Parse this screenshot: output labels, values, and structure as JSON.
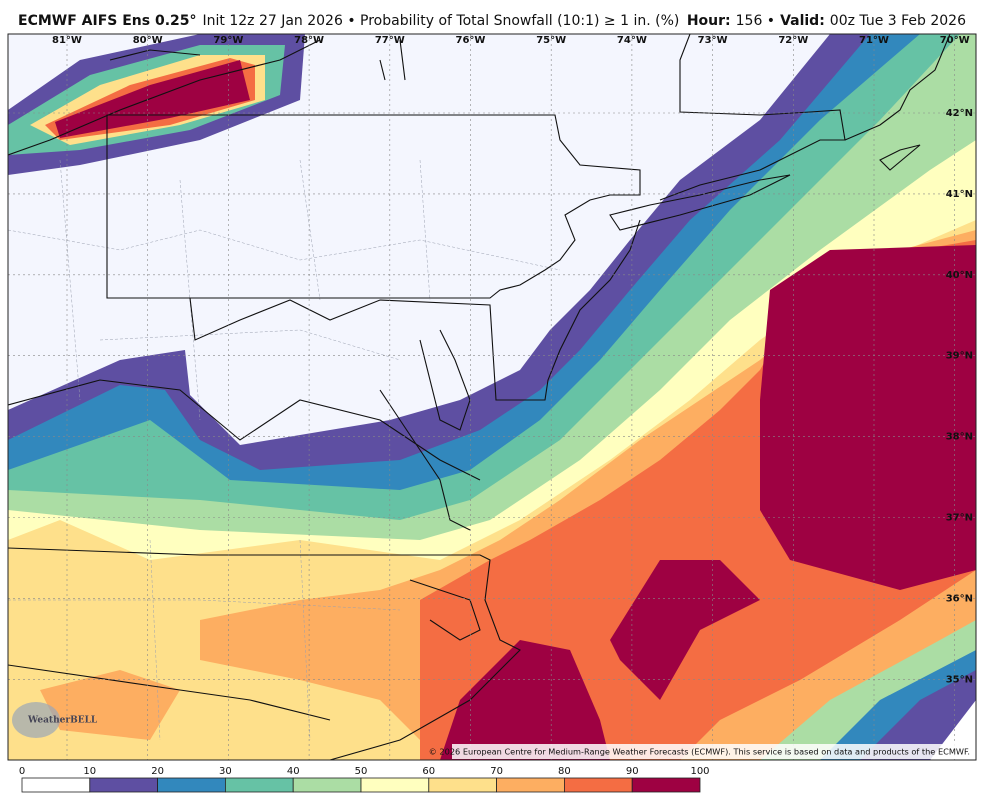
{
  "header": {
    "model": "ECMWF AIFS Ens 0.25°",
    "description": "Init 12z 27 Jan 2026 • Probability of Total Snowfall (10:1) ≥ 1 in. (%)",
    "hour_label": "Hour:",
    "hour": "156 •",
    "valid_label": "Valid:",
    "valid": "00z Tue 3 Feb 2026"
  },
  "map": {
    "longitude_labels": [
      "81°W",
      "80°W",
      "79°W",
      "78°W",
      "77°W",
      "76°W",
      "75°W",
      "74°W",
      "73°W",
      "72°W",
      "71°W",
      "70°W"
    ],
    "latitude_labels": [
      "42°N",
      "41°N",
      "40°N",
      "39°N",
      "38°N",
      "37°N",
      "36°N",
      "35°N"
    ]
  },
  "colorbar": {
    "ticks": [
      0,
      10,
      20,
      30,
      40,
      50,
      60,
      70,
      80,
      90,
      100
    ],
    "colors": [
      "#ffffff",
      "#5e4fa2",
      "#3288bd",
      "#66c2a5",
      "#abdda4",
      "#ffffbf",
      "#fee08b",
      "#fdae61",
      "#f46d43",
      "#9e0142"
    ]
  },
  "logo": "WeatherBELL",
  "copyright": "© 2026 European Centre for Medium-Range Weather Forecasts (ECMWF). This service is based on data and products of the ECMWF."
}
